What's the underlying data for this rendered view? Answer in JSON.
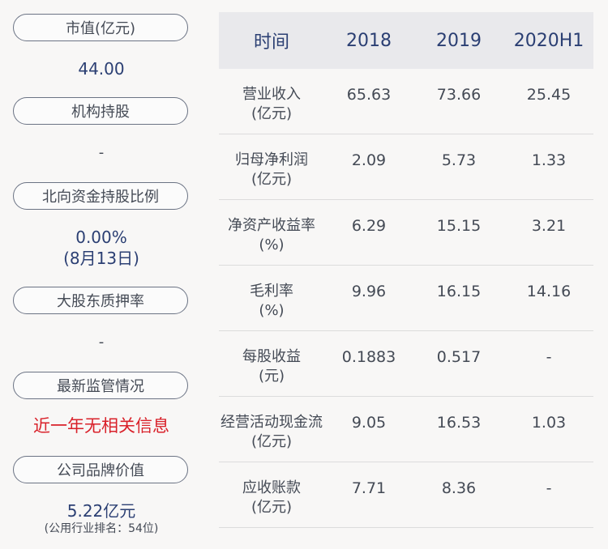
{
  "left": {
    "market_cap_label": "市值(亿元)",
    "market_cap_value": "44.00",
    "institution_label": "机构持股",
    "institution_value": "-",
    "northbound_label": "北向资金持股比例",
    "northbound_value": "0.00%",
    "northbound_date": "(8月13日)",
    "pledge_label": "大股东质押率",
    "pledge_value": "-",
    "regulation_label": "最新监管情况",
    "regulation_value": "近一年无相关信息",
    "brand_label": "公司品牌价值",
    "brand_value": "5.22亿元",
    "brand_rank": "(公用行业排名：54位)"
  },
  "table": {
    "headers": [
      "时间",
      "2018",
      "2019",
      "2020H1"
    ],
    "rows": [
      {
        "metric": "营业收入",
        "unit": "(亿元)",
        "v2018": "65.63",
        "v2019": "73.66",
        "v2020": "25.45"
      },
      {
        "metric": "归母净利润",
        "unit": "(亿元)",
        "v2018": "2.09",
        "v2019": "5.73",
        "v2020": "1.33"
      },
      {
        "metric": "净资产收益率",
        "unit": "(%)",
        "v2018": "6.29",
        "v2019": "15.15",
        "v2020": "3.21"
      },
      {
        "metric": "毛利率",
        "unit": "(%)",
        "v2018": "9.96",
        "v2019": "16.15",
        "v2020": "14.16"
      },
      {
        "metric": "每股收益",
        "unit": "(元)",
        "v2018": "0.1883",
        "v2019": "0.517",
        "v2020": "-"
      },
      {
        "metric": "经营活动现金流",
        "unit": "(亿元)",
        "v2018": "9.05",
        "v2019": "16.53",
        "v2020": "1.03"
      },
      {
        "metric": "应收账款",
        "unit": "(亿元)",
        "v2018": "7.71",
        "v2019": "8.36",
        "v2020": "-"
      }
    ]
  }
}
